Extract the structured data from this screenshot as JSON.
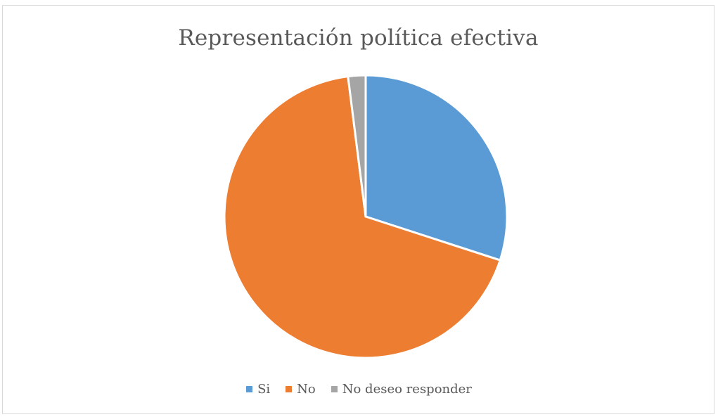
{
  "chart_data": {
    "type": "pie",
    "title": "Representación política efectiva",
    "categories": [
      "Si",
      "No",
      "No deseo responder"
    ],
    "values": [
      30,
      68,
      2
    ],
    "unit": "%",
    "colors": [
      "#5b9bd5",
      "#ed7d31",
      "#a5a5a5"
    ],
    "start_angle_deg": 0,
    "direction": "clockwise",
    "legend_position": "bottom"
  }
}
